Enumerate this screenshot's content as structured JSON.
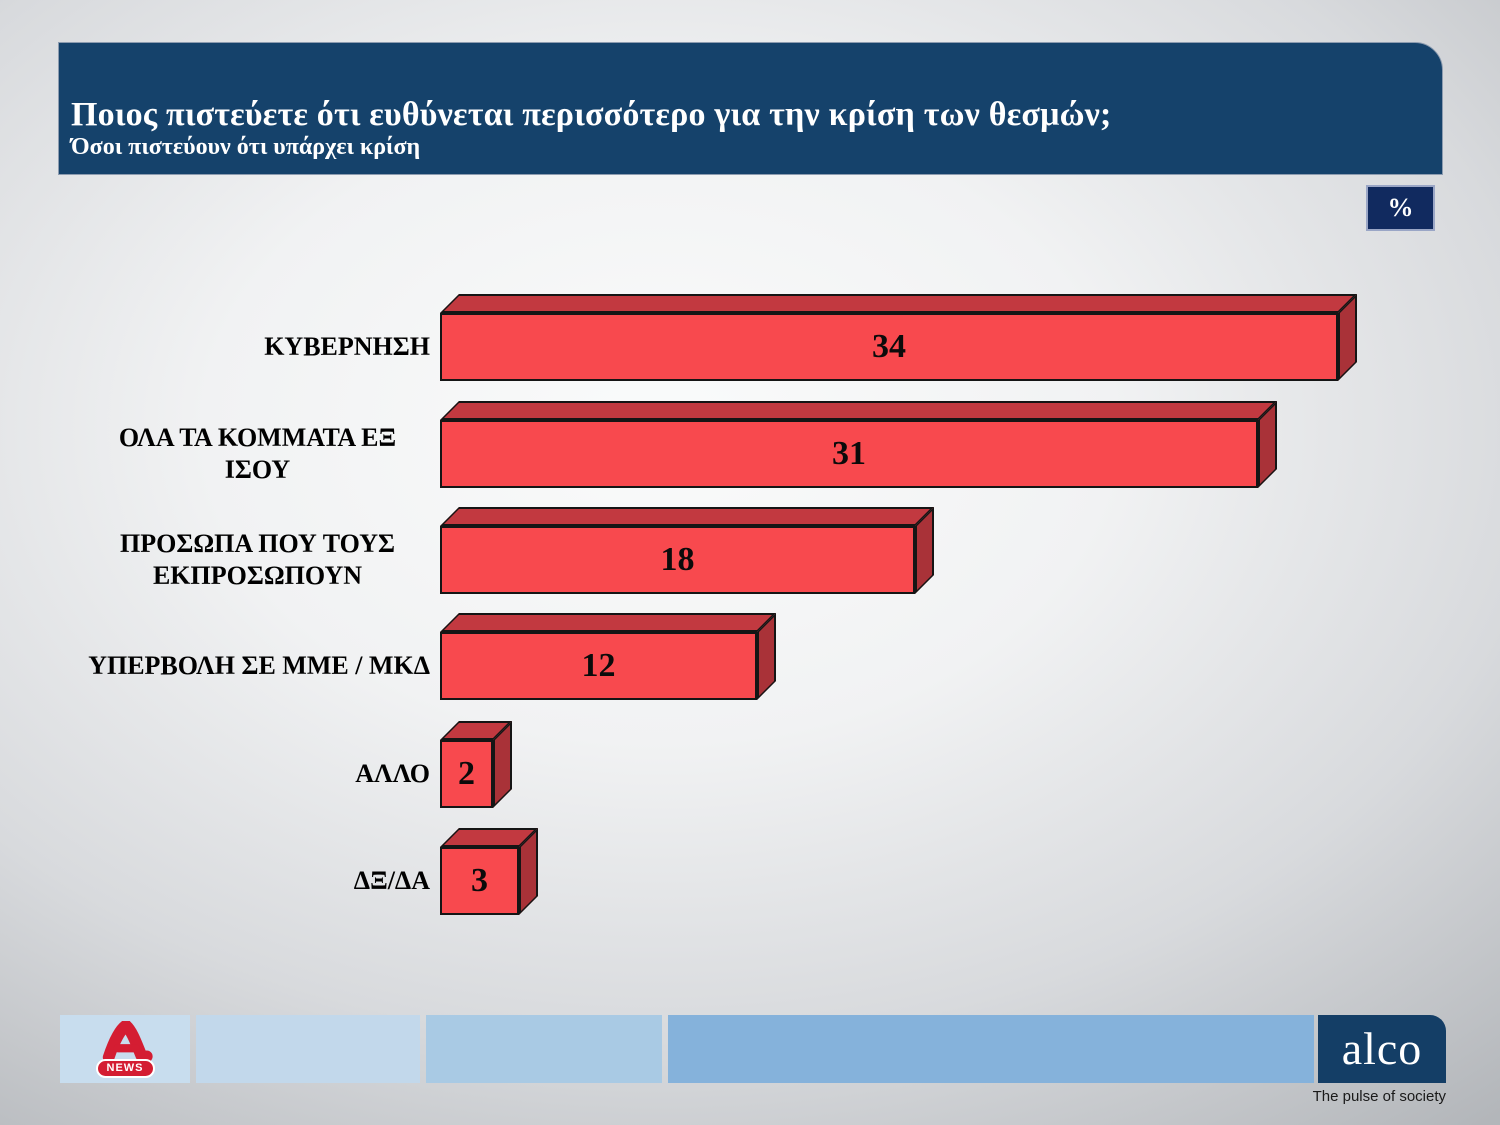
{
  "header": {
    "title": "Ποιος πιστεύετε ότι ευθύνεται περισσότερο για την κρίση των θεσμών;",
    "subtitle": "Όσοι πιστεύουν ότι υπάρχει κρίση"
  },
  "unit_badge": "%",
  "chart_data": {
    "type": "bar",
    "orientation": "horizontal",
    "unit": "%",
    "title": "Ποιος πιστεύετε ότι ευθύνεται περισσότερο για την κρίση των θεσμών;",
    "subtitle": "Όσοι πιστεύουν ότι υπάρχει κρίση",
    "categories": [
      "ΚΥΒΕΡΝΗΣΗ",
      "ΟΛΑ ΤΑ ΚΟΜΜΑΤΑ ΕΞ ΙΣΟΥ",
      "ΠΡΟΣΩΠΑ ΠΟΥ ΤΟΥΣ ΕΚΠΡΟΣΩΠΟΥΝ",
      "ΥΠΕΡΒΟΛΗ ΣΕ ΜΜΕ / ΜΚΔ",
      "ΑΛΛΟ",
      "ΔΞ/ΔΑ"
    ],
    "values": [
      34,
      31,
      18,
      12,
      2,
      3
    ],
    "xlim": [
      0,
      34
    ],
    "grid": false,
    "legend": "none",
    "value_labels_shown": true,
    "bar_style": "3d",
    "bar_color": "#f8494e",
    "bar_top_color": "#c23940",
    "bar_side_color": "#a93238"
  },
  "footer": {
    "alpha_news_label": "NEWS",
    "alco_logo_text": "alco",
    "alco_tagline": "The pulse of society"
  },
  "colors": {
    "header_bg": "#15426b",
    "badge_bg": "#112a5f",
    "footer_blocks": [
      "#c8ddee",
      "#c2d8eb",
      "#a9cae4",
      "#85b2db"
    ],
    "alco_navy": "#143e66",
    "alpha_red": "#d41d32",
    "bar_front": "#f8494e"
  }
}
